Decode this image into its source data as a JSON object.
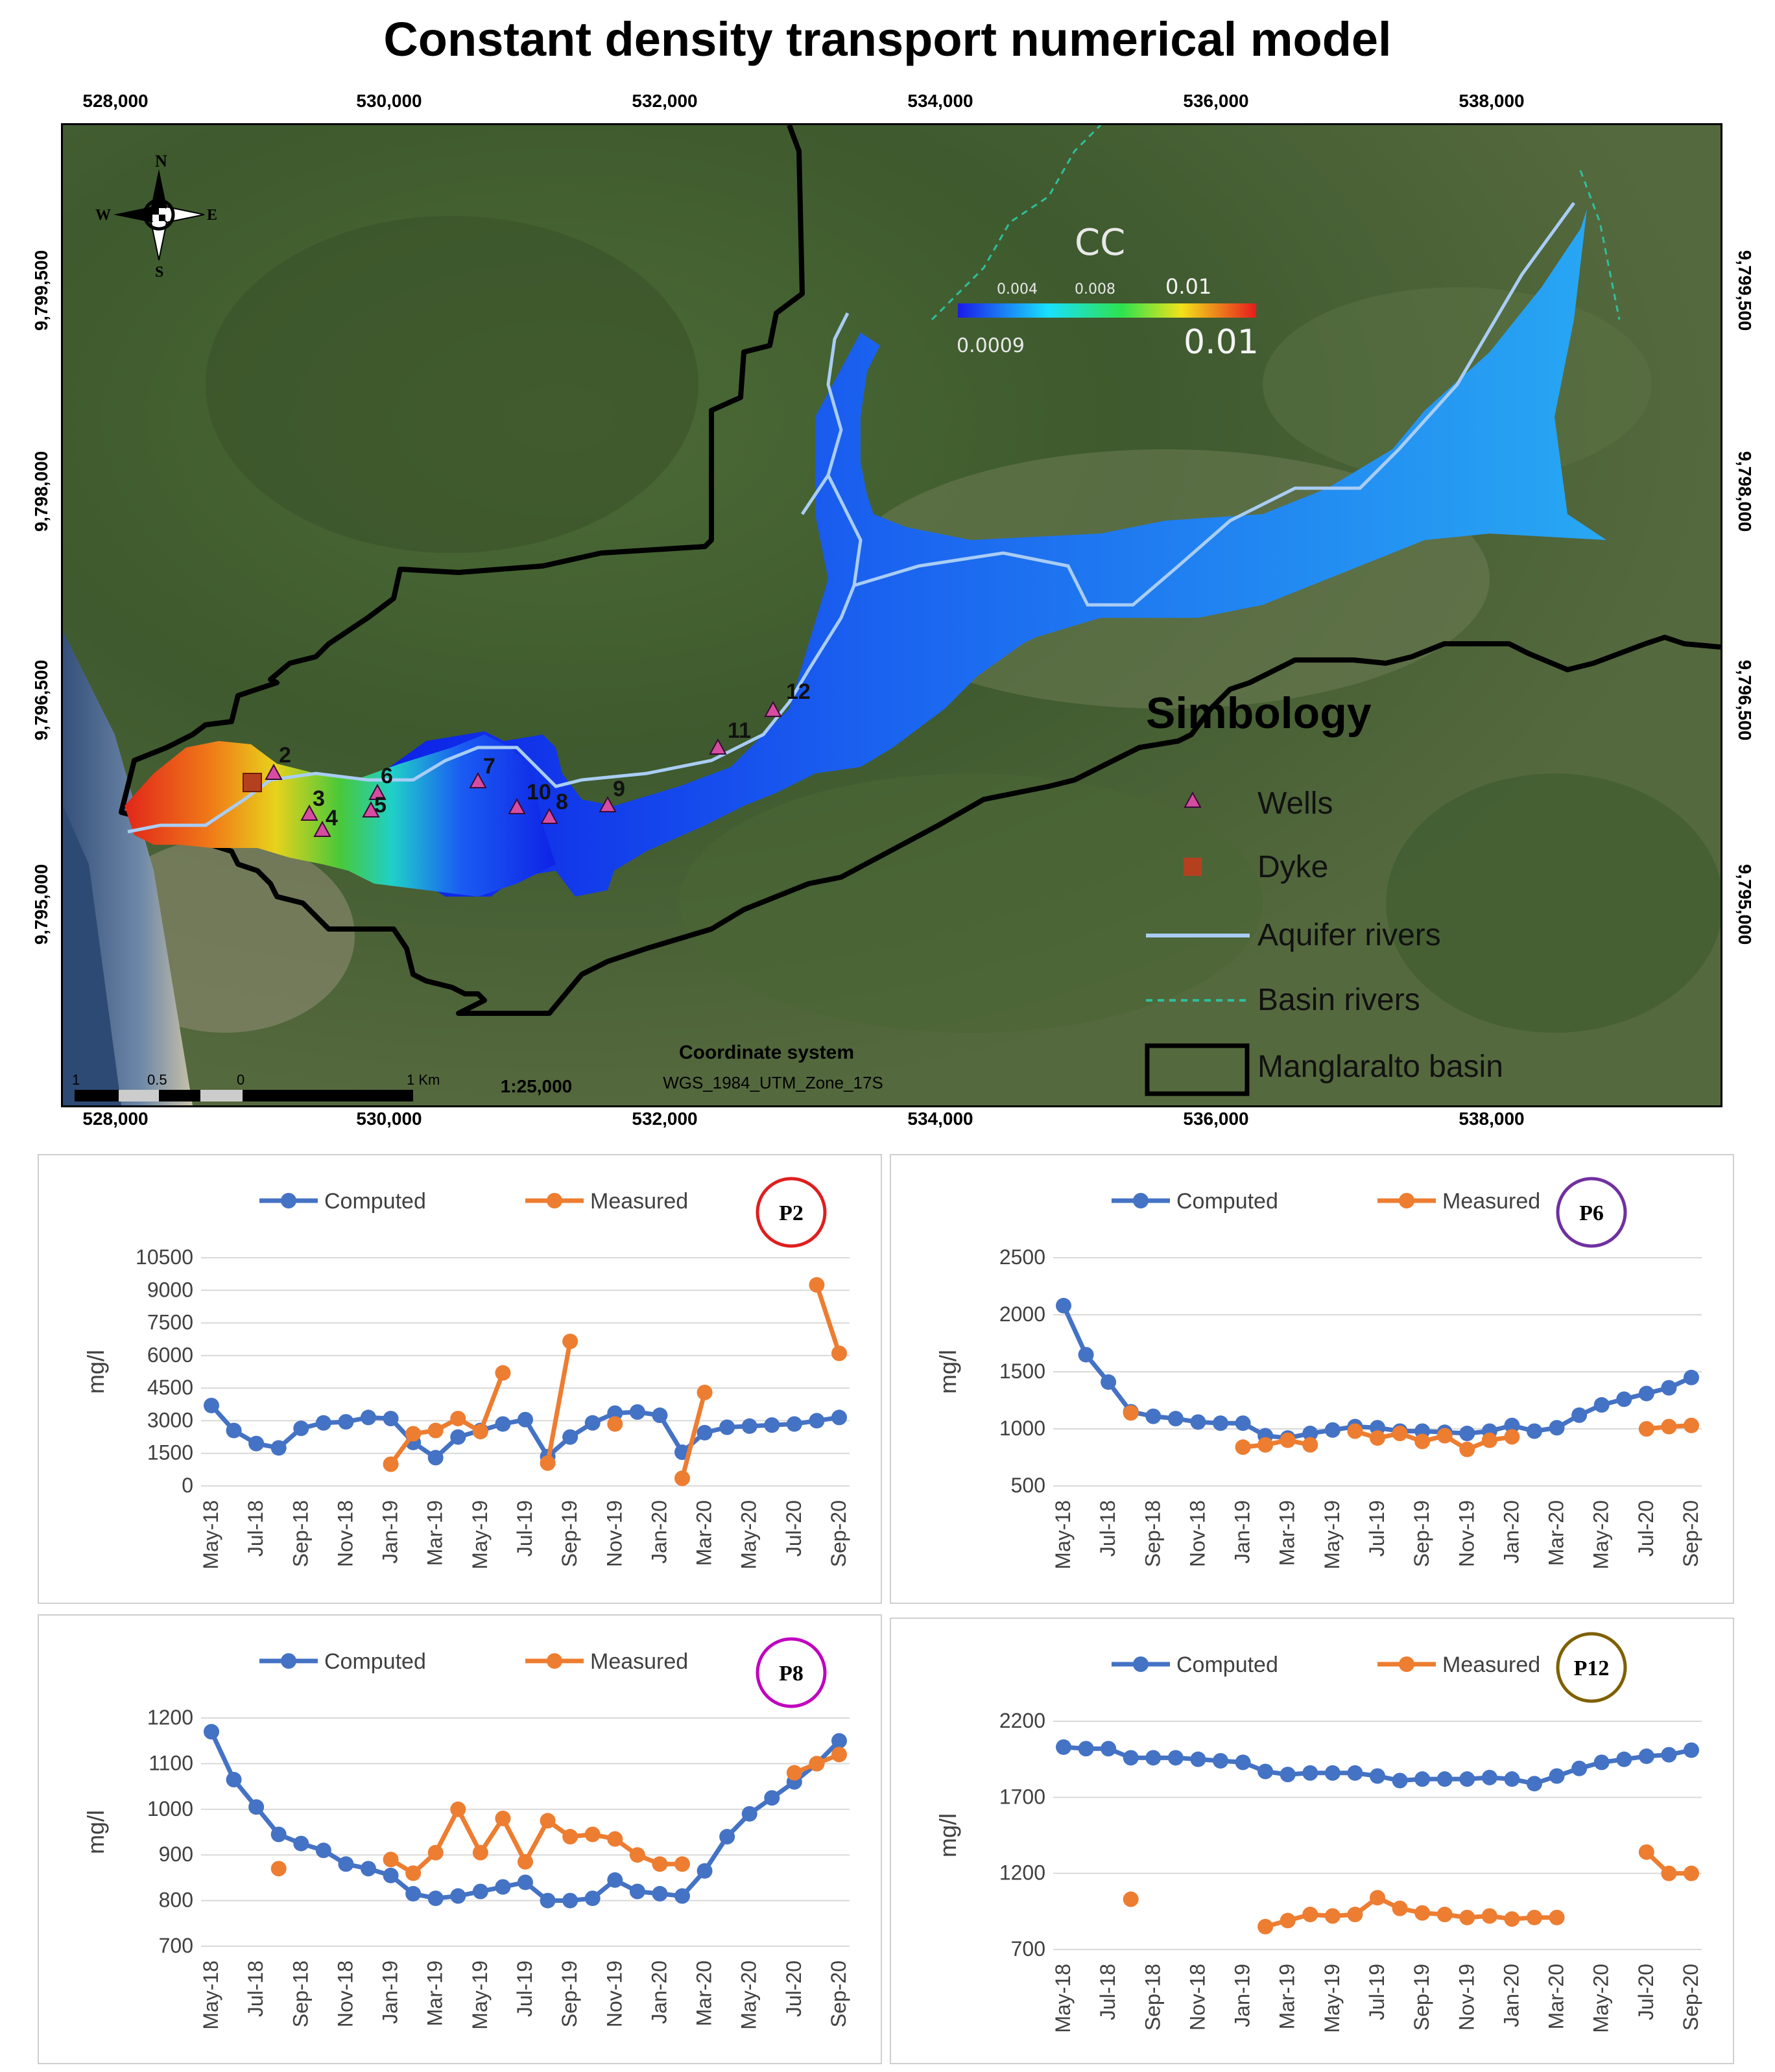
{
  "title": "Constant density transport numerical model",
  "axes": {
    "x_ticks": [
      "528,000",
      "530,000",
      "532,000",
      "534,000",
      "536,000",
      "538,000"
    ],
    "y_ticks": [
      "9,799,500",
      "9,798,000",
      "9,796,500",
      "9,795,000"
    ]
  },
  "north_arrow": {
    "n": "N",
    "s": "S",
    "e": "E",
    "w": "W"
  },
  "colorbar": {
    "title": "CC",
    "tick1": "0.004",
    "tick2": "0.008",
    "tick3": "0.01",
    "min": "0.0009",
    "max": "0.01"
  },
  "wells": [
    "2",
    "3",
    "4",
    "5",
    "6",
    "7",
    "10",
    "8",
    "9",
    "11",
    "12"
  ],
  "legend": {
    "title": "Simbology",
    "wells": "Wells",
    "dyke": "Dyke",
    "aquifer": "Aquifer rivers",
    "basin_rivers": "Basin rivers",
    "basin": "Manglaralto basin"
  },
  "coord": {
    "label": "Coordinate system",
    "value": "WGS_1984_UTM_Zone_17S"
  },
  "scalebar": {
    "labels": [
      "1",
      "0.5",
      "0",
      "1 Km"
    ],
    "ratio": "1:25,000"
  },
  "colors": {
    "computed": "#4472c4",
    "measured": "#ed7d31"
  },
  "chart_data": [
    {
      "type": "line",
      "id": "P2",
      "badge": "P2",
      "badge_color": "#e01e1e",
      "ylabel": "mg/l",
      "ylim": [
        0,
        10500
      ],
      "yticks": [
        "10500",
        "9000",
        "7500",
        "6000",
        "4500",
        "3000",
        "1500",
        "0"
      ],
      "xticks": [
        "May-18",
        "Jul-18",
        "Sep-18",
        "Nov-18",
        "Jan-19",
        "Mar-19",
        "May-19",
        "Jul-19",
        "Sep-19",
        "Nov-19",
        "Jan-20",
        "Mar-20",
        "May-20",
        "Jul-20",
        "Sep-20"
      ],
      "legend": [
        "Computed",
        "Measured"
      ],
      "series": [
        {
          "name": "Computed",
          "values": [
            3700,
            2550,
            1950,
            1750,
            2650,
            2900,
            2950,
            3150,
            3100,
            2000,
            1300,
            2250,
            2550,
            2850,
            3050,
            1350,
            2250,
            2900,
            3350,
            3400,
            3250,
            1550,
            2450,
            2700,
            2750,
            2800,
            2850,
            3000,
            3150
          ]
        },
        {
          "name": "Measured",
          "values": [
            null,
            null,
            null,
            null,
            null,
            null,
            null,
            null,
            1000,
            2400,
            2550,
            3100,
            2500,
            5200,
            null,
            1050,
            6650,
            null,
            2850,
            null,
            null,
            350,
            4300,
            null,
            null,
            null,
            null,
            9250,
            6100
          ]
        }
      ]
    },
    {
      "type": "line",
      "id": "P6",
      "badge": "P6",
      "badge_color": "#7030a0",
      "ylabel": "mg/l",
      "ylim": [
        500,
        2500
      ],
      "yticks": [
        "2500",
        "2000",
        "1500",
        "1000",
        "500"
      ],
      "xticks": [
        "May-18",
        "Jul-18",
        "Sep-18",
        "Nov-18",
        "Jan-19",
        "Mar-19",
        "May-19",
        "Jul-19",
        "Sep-19",
        "Nov-19",
        "Jan-20",
        "Mar-20",
        "May-20",
        "Jul-20",
        "Sep-20"
      ],
      "legend": [
        "Computed",
        "Measured"
      ],
      "series": [
        {
          "name": "Computed",
          "values": [
            2080,
            1650,
            1410,
            1150,
            1110,
            1090,
            1060,
            1050,
            1050,
            940,
            920,
            960,
            990,
            1020,
            1010,
            980,
            980,
            970,
            960,
            980,
            1030,
            980,
            1010,
            1120,
            1210,
            1260,
            1310,
            1360,
            1450
          ]
        },
        {
          "name": "Measured",
          "values": [
            null,
            null,
            null,
            1140,
            null,
            null,
            null,
            null,
            840,
            860,
            900,
            860,
            null,
            980,
            920,
            960,
            890,
            940,
            820,
            900,
            930,
            null,
            null,
            null,
            null,
            null,
            1000,
            1020,
            1030
          ]
        }
      ]
    },
    {
      "type": "line",
      "id": "P8",
      "badge": "P8",
      "badge_color": "#c000c0",
      "ylabel": "mg/l",
      "ylim": [
        700,
        1200
      ],
      "yticks": [
        "1200",
        "1100",
        "1000",
        "900",
        "800",
        "700"
      ],
      "xticks": [
        "May-18",
        "Jul-18",
        "Sep-18",
        "Nov-18",
        "Jan-19",
        "Mar-19",
        "May-19",
        "Jul-19",
        "Sep-19",
        "Nov-19",
        "Jan-20",
        "Mar-20",
        "May-20",
        "Jul-20",
        "Sep-20"
      ],
      "legend": [
        "Computed",
        "Measured"
      ],
      "series": [
        {
          "name": "Computed",
          "values": [
            1170,
            1065,
            1005,
            945,
            925,
            910,
            880,
            870,
            855,
            815,
            805,
            810,
            820,
            830,
            840,
            800,
            800,
            805,
            845,
            820,
            815,
            810,
            865,
            940,
            990,
            1025,
            1060,
            1100,
            1150
          ]
        },
        {
          "name": "Measured",
          "values": [
            null,
            null,
            null,
            870,
            null,
            null,
            null,
            null,
            890,
            860,
            905,
            1000,
            905,
            980,
            885,
            975,
            940,
            945,
            935,
            900,
            880,
            880,
            null,
            null,
            null,
            null,
            1080,
            1100,
            1120
          ]
        }
      ]
    },
    {
      "type": "line",
      "id": "P12",
      "badge": "P12",
      "badge_color": "#7f6000",
      "ylabel": "mg/l",
      "ylim": [
        700,
        2200
      ],
      "yticks": [
        "2200",
        "1700",
        "1200",
        "700"
      ],
      "xticks": [
        "May-18",
        "Jul-18",
        "Sep-18",
        "Nov-18",
        "Jan-19",
        "Mar-19",
        "May-19",
        "Jul-19",
        "Sep-19",
        "Nov-19",
        "Jan-20",
        "Mar-20",
        "May-20",
        "Jul-20",
        "Sep-20"
      ],
      "legend": [
        "Computed",
        "Measured"
      ],
      "series": [
        {
          "name": "Computed",
          "values": [
            2030,
            2020,
            2020,
            1960,
            1960,
            1960,
            1950,
            1940,
            1930,
            1870,
            1850,
            1860,
            1860,
            1860,
            1840,
            1810,
            1820,
            1820,
            1820,
            1830,
            1820,
            1790,
            1840,
            1890,
            1930,
            1950,
            1970,
            1980,
            2010
          ]
        },
        {
          "name": "Measured",
          "values": [
            null,
            null,
            null,
            1030,
            null,
            null,
            null,
            null,
            null,
            850,
            890,
            930,
            920,
            930,
            1040,
            970,
            940,
            930,
            910,
            920,
            900,
            910,
            910,
            null,
            null,
            null,
            1340,
            1200,
            1200
          ]
        }
      ]
    }
  ]
}
